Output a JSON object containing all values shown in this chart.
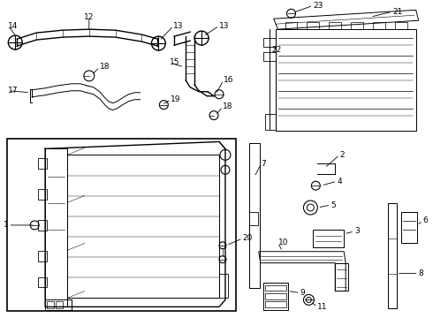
{
  "bg_color": "#ffffff",
  "line_color": "#000000",
  "text_color": "#000000",
  "fig_width": 4.9,
  "fig_height": 3.6,
  "dpi": 100
}
